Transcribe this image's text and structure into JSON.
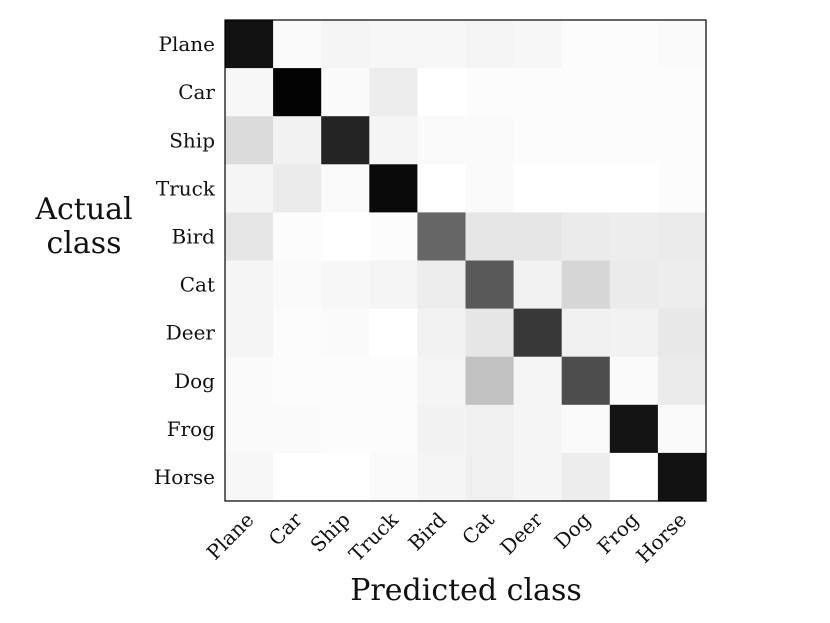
{
  "chart_data": {
    "type": "heatmap",
    "title": "",
    "xlabel": "Predicted class",
    "ylabel_lines": [
      "Actual",
      "class"
    ],
    "x_categories": [
      "Plane",
      "Car",
      "Ship",
      "Truck",
      "Bird",
      "Cat",
      "Deer",
      "Dog",
      "Frog",
      "Horse"
    ],
    "y_categories": [
      "Plane",
      "Car",
      "Ship",
      "Truck",
      "Bird",
      "Cat",
      "Deer",
      "Dog",
      "Frog",
      "Horse"
    ],
    "value_range": [
      0,
      1
    ],
    "colorscale": "white-to-black",
    "values": [
      [
        0.93,
        0.02,
        0.04,
        0.03,
        0.03,
        0.04,
        0.03,
        0.01,
        0.01,
        0.02
      ],
      [
        0.03,
        0.99,
        0.02,
        0.07,
        0.0,
        0.01,
        0.01,
        0.01,
        0.01,
        0.01
      ],
      [
        0.14,
        0.05,
        0.86,
        0.04,
        0.02,
        0.02,
        0.01,
        0.01,
        0.01,
        0.01
      ],
      [
        0.04,
        0.08,
        0.02,
        0.96,
        0.0,
        0.02,
        0.0,
        0.0,
        0.0,
        0.01
      ],
      [
        0.1,
        0.01,
        0.0,
        0.01,
        0.6,
        0.1,
        0.1,
        0.08,
        0.07,
        0.08
      ],
      [
        0.04,
        0.02,
        0.03,
        0.04,
        0.07,
        0.65,
        0.05,
        0.16,
        0.08,
        0.07
      ],
      [
        0.04,
        0.01,
        0.02,
        0.0,
        0.05,
        0.1,
        0.78,
        0.06,
        0.05,
        0.09
      ],
      [
        0.02,
        0.01,
        0.01,
        0.01,
        0.04,
        0.24,
        0.04,
        0.7,
        0.02,
        0.08
      ],
      [
        0.02,
        0.02,
        0.01,
        0.01,
        0.05,
        0.06,
        0.04,
        0.02,
        0.92,
        0.02
      ],
      [
        0.03,
        0.0,
        0.0,
        0.02,
        0.04,
        0.06,
        0.04,
        0.07,
        0.0,
        0.93
      ]
    ]
  }
}
